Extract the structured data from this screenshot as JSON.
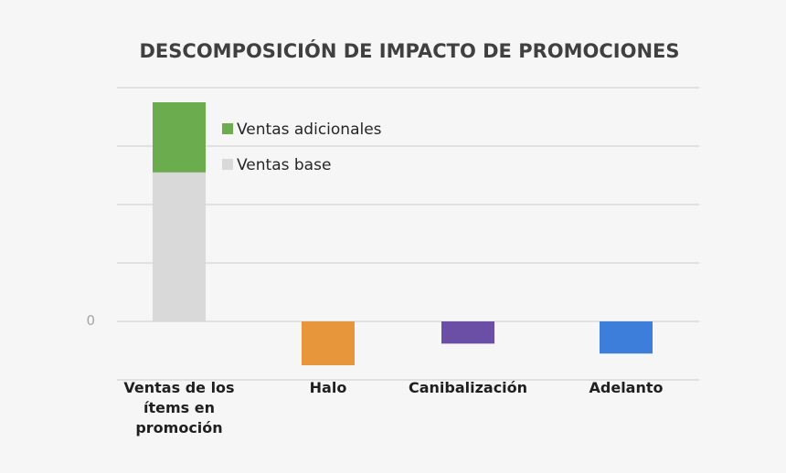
{
  "chart_data": {
    "type": "bar",
    "title": "DESCOMPOSICIÓN DE IMPACTO DE PROMOCIONES",
    "xlabel": "",
    "ylabel": "",
    "ylim": [
      -1,
      4
    ],
    "y_ticks": [
      0
    ],
    "y_tick_labels": [
      "0"
    ],
    "grid": true,
    "legend_position": "top-right of first bar",
    "categories": [
      [
        "Ventas de los",
        "ítems en",
        "promoción"
      ],
      [
        "Halo"
      ],
      [
        "Canibalización"
      ],
      [
        "Adelanto"
      ]
    ],
    "stacked": {
      "category_index": 0,
      "series": [
        {
          "name": "Ventas base",
          "value": 2.55,
          "color": "#d9d9d9"
        },
        {
          "name": "Ventas adicionales",
          "value": 1.2,
          "color": "#6aac4e"
        }
      ]
    },
    "bars": [
      {
        "category_index": 1,
        "value": -0.75,
        "color": "#e8963c"
      },
      {
        "category_index": 2,
        "value": -0.38,
        "color": "#6b4fa6"
      },
      {
        "category_index": 3,
        "value": -0.55,
        "color": "#3d7edb"
      }
    ],
    "legend": [
      {
        "label": "Ventas adicionales",
        "color": "#6aac4e"
      },
      {
        "label": "Ventas base",
        "color": "#d9d9d9"
      }
    ]
  }
}
